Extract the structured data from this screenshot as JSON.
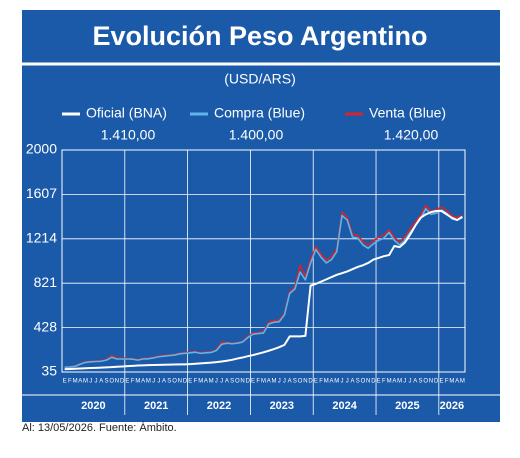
{
  "chart_data": {
    "type": "line",
    "title": "Evolución Peso Argentino",
    "subtitle": "(USD/ARS)",
    "footnote": "Al: 13/05/2026. Fuente: Ámbito.",
    "categories": [
      "E",
      "F",
      "M",
      "A",
      "M",
      "J",
      "J",
      "A",
      "S",
      "O",
      "N",
      "D",
      "E",
      "F",
      "M",
      "A",
      "M",
      "J",
      "J",
      "A",
      "S",
      "O",
      "N",
      "D",
      "E",
      "F",
      "M",
      "A",
      "M",
      "J",
      "J",
      "A",
      "S",
      "O",
      "N",
      "D",
      "E",
      "F",
      "M",
      "A",
      "M",
      "J",
      "J",
      "A",
      "S",
      "O",
      "N",
      "D",
      "E",
      "F",
      "M",
      "A",
      "M",
      "J",
      "J",
      "A",
      "S",
      "O",
      "N",
      "D",
      "E",
      "F",
      "M",
      "A",
      "M",
      "J",
      "J",
      "A",
      "S",
      "O",
      "N",
      "D",
      "E",
      "F",
      "M",
      "A",
      "M"
    ],
    "years": [
      "2020",
      "2021",
      "2022",
      "2023",
      "2024",
      "2025",
      "2026"
    ],
    "ylim": [
      35,
      2000
    ],
    "yticks": [
      35,
      428,
      821,
      1214,
      1607,
      2000
    ],
    "grid": true,
    "series": [
      {
        "name": "Oficial (BNA)",
        "current": "1.410,00",
        "color": "#ffffff",
        "values": [
          60,
          62,
          64,
          66,
          68,
          70,
          72,
          74,
          76,
          78,
          81,
          84,
          87,
          89,
          92,
          94,
          96,
          97,
          98,
          99,
          100,
          101,
          102,
          103,
          105,
          108,
          111,
          115,
          118,
          122,
          128,
          135,
          143,
          154,
          163,
          175,
          185,
          197,
          209,
          223,
          238,
          255,
          275,
          350,
          350,
          350,
          355,
          800,
          815,
          835,
          855,
          875,
          895,
          910,
          925,
          945,
          965,
          980,
          1000,
          1030,
          1045,
          1060,
          1070,
          1150,
          1140,
          1180,
          1250,
          1330,
          1400,
          1430,
          1450,
          1460,
          1460,
          1430,
          1400,
          1380,
          1410
        ]
      },
      {
        "name": "Compra (Blue)",
        "current": "1.400,00",
        "color": "#5cb6ea",
        "values": [
          78,
          79,
          85,
          105,
          120,
          125,
          128,
          130,
          140,
          165,
          150,
          150,
          150,
          148,
          140,
          150,
          152,
          160,
          170,
          175,
          180,
          185,
          196,
          200,
          205,
          210,
          200,
          205,
          208,
          225,
          280,
          290,
          285,
          290,
          300,
          340,
          370,
          375,
          380,
          460,
          475,
          480,
          540,
          730,
          770,
          920,
          850,
          1000,
          1120,
          1050,
          1000,
          1030,
          1100,
          1420,
          1380,
          1230,
          1220,
          1160,
          1130,
          1170,
          1200,
          1220,
          1270,
          1200,
          1160,
          1200,
          1270,
          1330,
          1390,
          1480,
          1430,
          1440,
          1470,
          1440,
          1390,
          1380,
          1400
        ]
      },
      {
        "name": "Venta (Blue)",
        "current": "1.420,00",
        "color": "#d8232a",
        "values": [
          80,
          81,
          88,
          110,
          125,
          130,
          132,
          135,
          145,
          180,
          158,
          157,
          155,
          152,
          146,
          155,
          157,
          165,
          176,
          182,
          186,
          190,
          202,
          207,
          210,
          216,
          205,
          210,
          213,
          232,
          300,
          296,
          290,
          295,
          306,
          350,
          380,
          385,
          392,
          475,
          490,
          492,
          555,
          745,
          790,
          980,
          880,
          1030,
          1145,
          1075,
          1025,
          1055,
          1125,
          1450,
          1405,
          1255,
          1245,
          1185,
          1160,
          1195,
          1230,
          1245,
          1295,
          1225,
          1185,
          1230,
          1300,
          1360,
          1420,
          1510,
          1460,
          1470,
          1495,
          1465,
          1415,
          1405,
          1420
        ]
      }
    ]
  }
}
